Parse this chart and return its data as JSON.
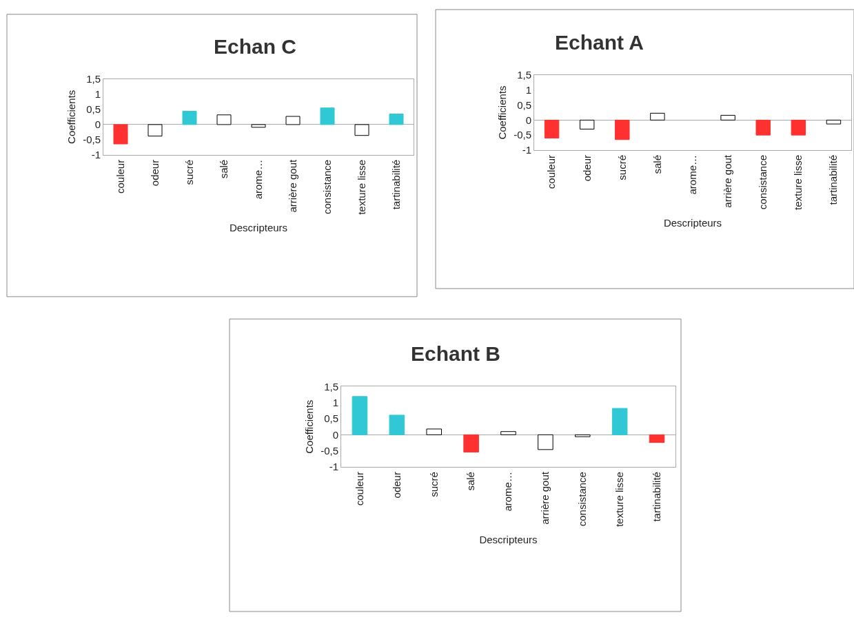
{
  "chart_data": [
    {
      "type": "bar",
      "title": "Echan C",
      "xlabel": "Descripteurs",
      "ylabel": "Coefficients",
      "categories": [
        "couleur",
        "odeur",
        "sucré",
        "salé",
        "arome…",
        "arrière gout",
        "consistance",
        "texture lisse",
        "tartinabilité"
      ],
      "values": [
        -0.64,
        -0.38,
        0.44,
        0.32,
        -0.09,
        0.27,
        0.55,
        -0.36,
        0.35
      ],
      "colors": [
        "#ff3030",
        "#ffffff",
        "#30c8d4",
        "#ffffff",
        "#ffffff",
        "#ffffff",
        "#30c8d4",
        "#ffffff",
        "#30c8d4"
      ],
      "ylim": [
        -1,
        1.5
      ],
      "yticks": [
        {
          "value": -1,
          "label": "-1"
        },
        {
          "value": -0.5,
          "label": "-0,5"
        },
        0,
        1,
        {
          "value": 0.5,
          "label": "0,5"
        },
        {
          "value": 1.5,
          "label": "1,5"
        }
      ]
    },
    {
      "type": "bar",
      "title": "Echant A",
      "xlabel": "Descripteurs",
      "ylabel": "Coefficients",
      "categories": [
        "couleur",
        "odeur",
        "sucré",
        "salé",
        "arome…",
        "arrière gout",
        "consistance",
        "texture lisse",
        "tartinabilité"
      ],
      "values": [
        -0.6,
        -0.3,
        -0.65,
        0.23,
        null,
        0.16,
        -0.5,
        -0.5,
        -0.13
      ],
      "colors": [
        "#ff3030",
        "#ffffff",
        "#ff3030",
        "#ffffff",
        "#ffffff",
        "#ffffff",
        "#ff3030",
        "#ff3030",
        "#ffffff"
      ],
      "ylim": [
        -1,
        1.5
      ],
      "yticks": [
        {
          "value": -1,
          "label": "-1"
        },
        {
          "value": -0.5,
          "label": "-0,5"
        },
        0,
        1,
        {
          "value": 0.5,
          "label": "0,5"
        },
        {
          "value": 1.5,
          "label": "1,5"
        }
      ]
    },
    {
      "type": "bar",
      "title": "Echant B",
      "xlabel": "Descripteurs",
      "ylabel": "Coefficients",
      "categories": [
        "couleur",
        "odeur",
        "sucré",
        "salé",
        "arome…",
        "arrière gout",
        "consistance",
        "texture lisse",
        "tartinabilité"
      ],
      "values": [
        1.19,
        0.61,
        0.18,
        -0.54,
        0.1,
        -0.46,
        -0.06,
        0.82,
        -0.24
      ],
      "colors": [
        "#30c8d4",
        "#30c8d4",
        "#ffffff",
        "#ff3030",
        "#ffffff",
        "#ffffff",
        "#ffffff",
        "#30c8d4",
        "#ff3030"
      ],
      "ylim": [
        -1,
        1.5
      ],
      "yticks": [
        {
          "value": -1,
          "label": "-1"
        },
        {
          "value": -0.5,
          "label": "-0,5"
        },
        0,
        1,
        {
          "value": 0.5,
          "label": "0,5"
        },
        {
          "value": 1.5,
          "label": "1,5"
        }
      ]
    }
  ]
}
